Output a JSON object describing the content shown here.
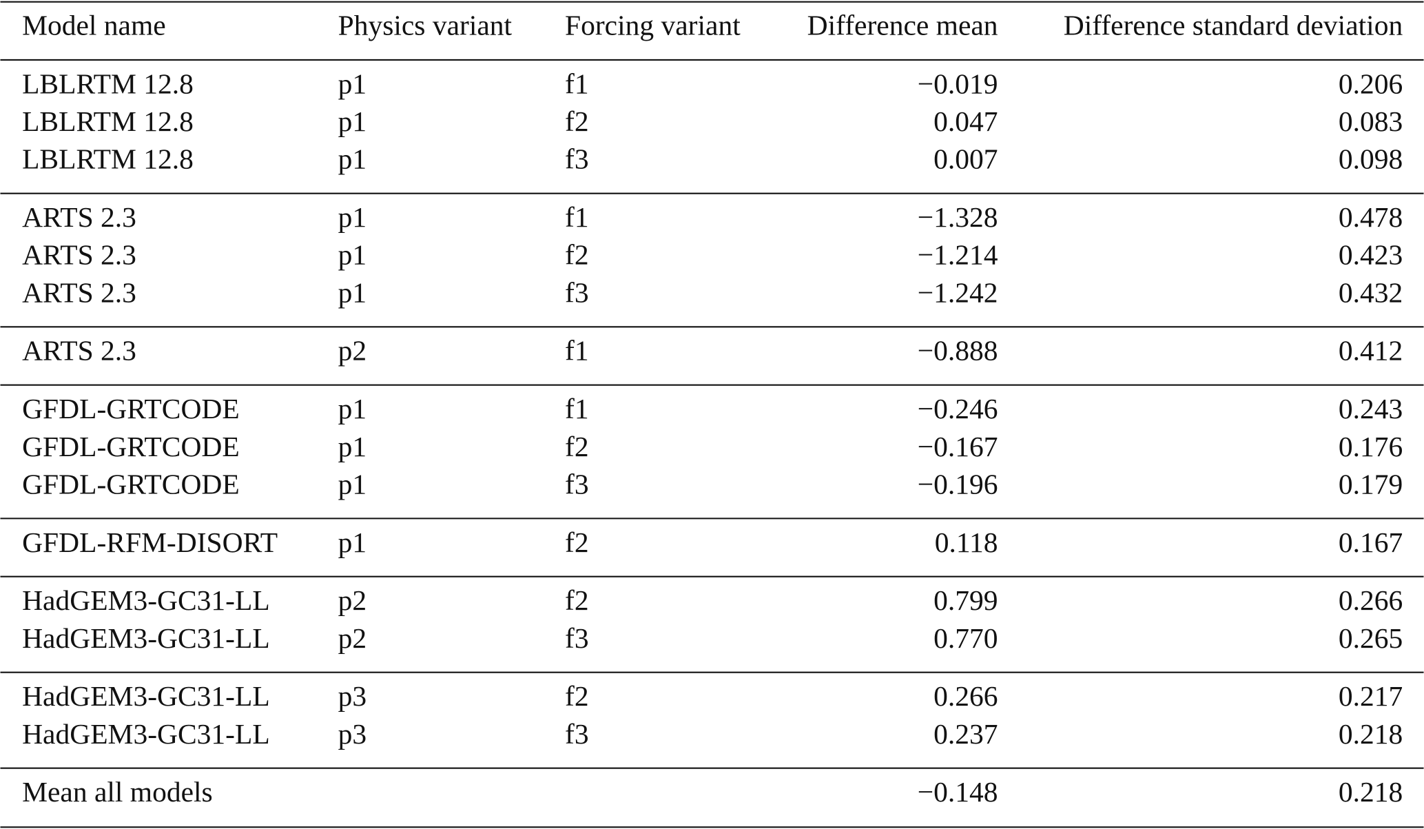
{
  "table": {
    "header": [
      "Model name",
      "Physics variant",
      "Forcing variant",
      "Difference mean",
      "Difference standard deviation"
    ],
    "groups": [
      [
        [
          "LBLRTM 12.8",
          "p1",
          "f1",
          "−0.019",
          "0.206"
        ],
        [
          "LBLRTM 12.8",
          "p1",
          "f2",
          "0.047",
          "0.083"
        ],
        [
          "LBLRTM 12.8",
          "p1",
          "f3",
          "0.007",
          "0.098"
        ]
      ],
      [
        [
          "ARTS 2.3",
          "p1",
          "f1",
          "−1.328",
          "0.478"
        ],
        [
          "ARTS 2.3",
          "p1",
          "f2",
          "−1.214",
          "0.423"
        ],
        [
          "ARTS 2.3",
          "p1",
          "f3",
          "−1.242",
          "0.432"
        ]
      ],
      [
        [
          "ARTS 2.3",
          "p2",
          "f1",
          "−0.888",
          "0.412"
        ]
      ],
      [
        [
          "GFDL-GRTCODE",
          "p1",
          "f1",
          "−0.246",
          "0.243"
        ],
        [
          "GFDL-GRTCODE",
          "p1",
          "f2",
          "−0.167",
          "0.176"
        ],
        [
          "GFDL-GRTCODE",
          "p1",
          "f3",
          "−0.196",
          "0.179"
        ]
      ],
      [
        [
          "GFDL-RFM-DISORT",
          "p1",
          "f2",
          "0.118",
          "0.167"
        ]
      ],
      [
        [
          "HadGEM3-GC31-LL",
          "p2",
          "f2",
          "0.799",
          "0.266"
        ],
        [
          "HadGEM3-GC31-LL",
          "p2",
          "f3",
          "0.770",
          "0.265"
        ]
      ],
      [
        [
          "HadGEM3-GC31-LL",
          "p3",
          "f2",
          "0.266",
          "0.217"
        ],
        [
          "HadGEM3-GC31-LL",
          "p3",
          "f3",
          "0.237",
          "0.218"
        ]
      ],
      [
        [
          "Mean all models",
          null,
          null,
          "−0.148",
          "0.218"
        ]
      ]
    ]
  }
}
